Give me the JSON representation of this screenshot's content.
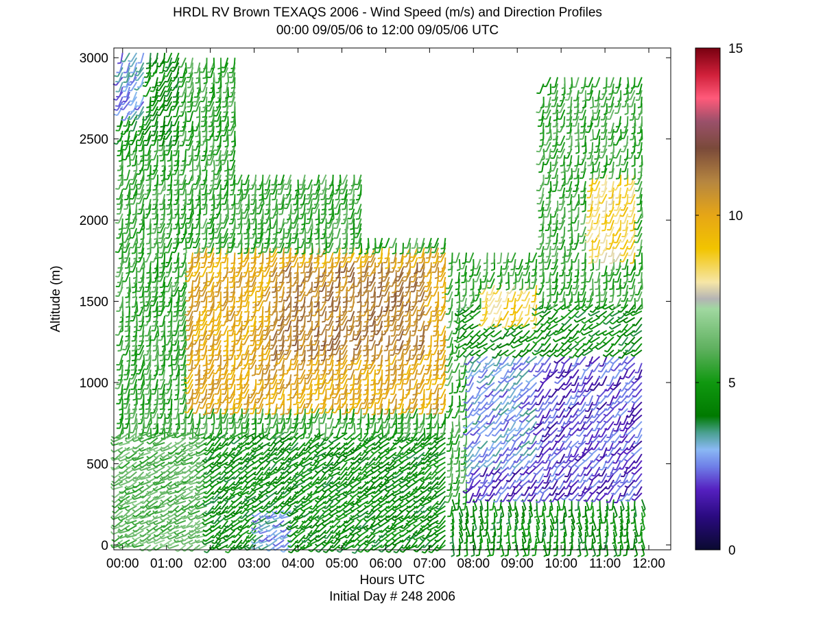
{
  "title": "HRDL RV Brown TEXAQS 2006 - Wind Speed (m/s) and Direction Profiles",
  "subtitle": "00:00 09/05/06 to 12:00 09/05/06  UTC",
  "xlabel": "Hours UTC",
  "xlabel2": "Initial Day # 248  2006",
  "ylabel": "Altitude (m)",
  "chart_data": {
    "type": "heatmap",
    "subtype": "wind barb profiles colored by speed",
    "title": "HRDL RV Brown TEXAQS 2006 - Wind Speed (m/s) and Direction Profiles",
    "subtitle": "00:00 09/05/06 to 12:00 09/05/06  UTC",
    "xlabel": "Hours UTC",
    "ylabel": "Altitude (m)",
    "x_ticks": [
      "00:00",
      "01:00",
      "02:00",
      "03:00",
      "04:00",
      "05:00",
      "06:00",
      "07:00",
      "08:00",
      "09:00",
      "10:00",
      "11:00",
      "12:00"
    ],
    "xlim": [
      -0.2,
      12.5
    ],
    "y_ticks": [
      0,
      500,
      1000,
      1500,
      2000,
      2500,
      3000
    ],
    "ylim": [
      -30,
      3060
    ],
    "colorbar": {
      "range": [
        0,
        15
      ],
      "ticks": [
        0,
        5,
        10,
        15
      ],
      "stops": [
        [
          0,
          "#0a0a30"
        ],
        [
          1,
          "#2a0a80"
        ],
        [
          1.8,
          "#5520c0"
        ],
        [
          2.5,
          "#6f80e8"
        ],
        [
          3,
          "#8ab8f4"
        ],
        [
          3.5,
          "#4aa090"
        ],
        [
          4,
          "#007a00"
        ],
        [
          5,
          "#109810"
        ],
        [
          6,
          "#5eb05e"
        ],
        [
          7.2,
          "#a0d8a0"
        ],
        [
          7.5,
          "#b4b4b4"
        ],
        [
          8,
          "#f6e6a6"
        ],
        [
          9,
          "#f2c400"
        ],
        [
          10,
          "#e6a616"
        ],
        [
          11,
          "#b68640"
        ],
        [
          12,
          "#7a4a3a"
        ],
        [
          12.8,
          "#9a506a"
        ],
        [
          13.5,
          "#ff5a7a"
        ],
        [
          14.2,
          "#d0203a"
        ],
        [
          15,
          "#780010"
        ]
      ]
    },
    "grid": false,
    "profile_spacing_hours": 0.16,
    "speed_regions": [
      {
        "t": [
          0,
          12
        ],
        "z": [
          0,
          3000
        ],
        "speed": 5.5,
        "dir": 190
      },
      {
        "t": [
          0,
          3
        ],
        "z": [
          0,
          120
        ],
        "speed": 6.2,
        "dir": 245
      },
      {
        "t": [
          0,
          2
        ],
        "z": [
          120,
          700
        ],
        "speed": 6.0,
        "dir": 240
      },
      {
        "t": [
          2,
          7.5
        ],
        "z": [
          0,
          700
        ],
        "speed": 4.5,
        "dir": 230
      },
      {
        "t": [
          3.2,
          4
        ],
        "z": [
          0,
          220
        ],
        "speed": 3.0,
        "dir": 240
      },
      {
        "t": [
          7.5,
          12
        ],
        "z": [
          0,
          300
        ],
        "speed": 4.5,
        "dir": 175
      },
      {
        "t": [
          8,
          12
        ],
        "z": [
          300,
          1200
        ],
        "speed": 2.0,
        "dir": 215
      },
      {
        "t": [
          8,
          9.5
        ],
        "z": [
          500,
          1200
        ],
        "speed": 2.8,
        "dir": 220
      },
      {
        "t": [
          7.7,
          12
        ],
        "z": [
          1200,
          1500
        ],
        "speed": 4.5,
        "dir": 230
      },
      {
        "t": [
          1.5,
          7.5
        ],
        "z": [
          850,
          1850
        ],
        "speed": 10.0,
        "dir": 195
      },
      {
        "t": [
          3.5,
          7
        ],
        "z": [
          1200,
          1750
        ],
        "speed": 11.0,
        "dir": 195
      },
      {
        "t": [
          8.2,
          9.6
        ],
        "z": [
          1400,
          1620
        ],
        "speed": 8.5,
        "dir": 200
      },
      {
        "t": [
          10.7,
          11.7
        ],
        "z": [
          1800,
          2300
        ],
        "speed": 8.5,
        "dir": 195
      },
      {
        "t": [
          0,
          1.3
        ],
        "z": [
          2500,
          3060
        ],
        "speed": 4.5,
        "dir": 200
      },
      {
        "t": [
          0,
          0.6
        ],
        "z": [
          2650,
          3060
        ],
        "speed": 2.8,
        "dir": 205
      }
    ],
    "coverage": [
      {
        "t": [
          0,
          2.6
        ],
        "z": [
          0,
          3060
        ]
      },
      {
        "t": [
          2.6,
          5.5
        ],
        "z": [
          0,
          2300
        ]
      },
      {
        "t": [
          5.5,
          7.5
        ],
        "z": [
          0,
          1900
        ]
      },
      {
        "t": [
          7.5,
          9.5
        ],
        "z": [
          0,
          1800
        ]
      },
      {
        "t": [
          9.5,
          11.85
        ],
        "z": [
          0,
          2900
        ]
      }
    ]
  }
}
